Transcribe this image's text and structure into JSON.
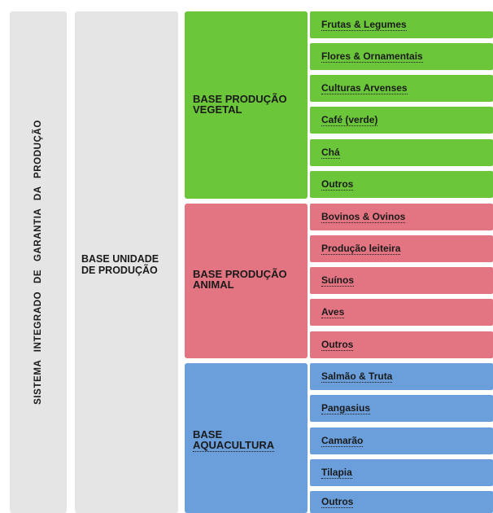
{
  "system": {
    "label": "SISTEMA INTEGRADO DE GARANTIA DA PRODUÇÃO"
  },
  "unit": {
    "label": "BASE UNIDADE\nDE PRODUÇÃO"
  },
  "bases": {
    "vegetal": {
      "label": "BASE PRODUÇÃO\nVEGETAL",
      "color": "#6bc63a",
      "items": [
        "Frutas & Legumes",
        "Flores & Ornamentais",
        "Culturas Arvenses",
        "Café (verde)",
        "Chá",
        "Outros"
      ]
    },
    "animal": {
      "label": "BASE PRODUÇÃO\nANIMAL",
      "color": "#e37582",
      "items": [
        "Bovinos & Ovinos",
        "Produção leiteira",
        "Suínos",
        "Aves",
        "Outros"
      ]
    },
    "aqua": {
      "label_line1": "BASE",
      "label_line2": "AQUACULTURA",
      "color": "#6b9fdc",
      "items": [
        "Salmão & Truta",
        "Pangasius",
        "Camarão",
        "Tilapia",
        "Outros"
      ]
    }
  }
}
